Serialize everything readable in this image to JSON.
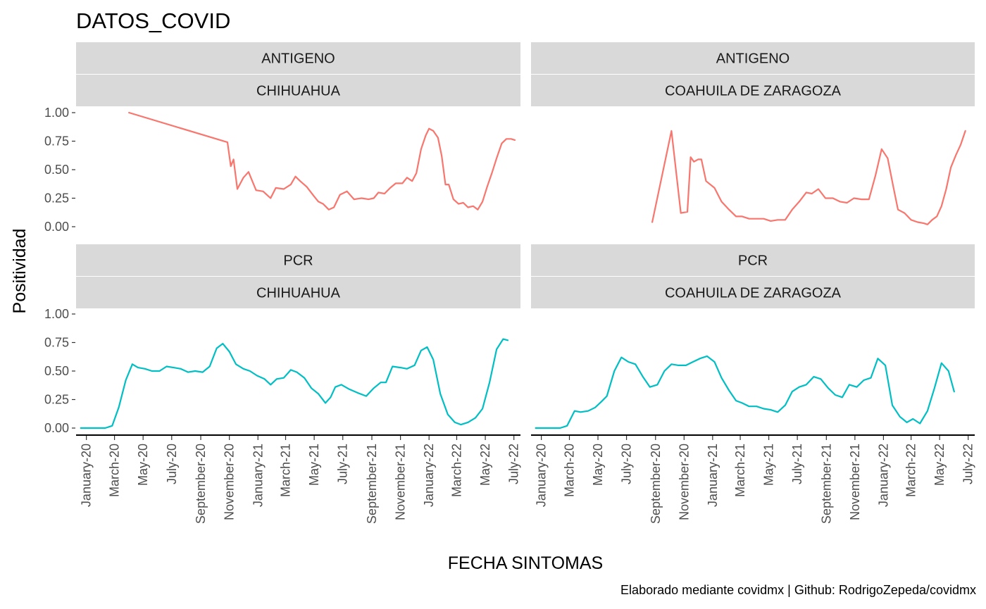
{
  "chart_data": {
    "type": "line",
    "title": "DATOS_COVID",
    "xlabel": "FECHA SINTOMAS",
    "ylabel": "Positividad",
    "caption": "Elaborado mediante covidmx | Github: RodrigoZepeda/covidmx",
    "ylim": [
      0,
      1
    ],
    "y_ticks": [
      0,
      0.25,
      0.5,
      0.75,
      1.0
    ],
    "y_tick_labels": [
      "0.00",
      "0.25",
      "0.50",
      "0.75",
      "1.00"
    ],
    "xlim": [
      "2019-12-10",
      "2022-07-15"
    ],
    "x_ticks": [
      "2020-01-01",
      "2020-03-01",
      "2020-05-01",
      "2020-07-01",
      "2020-09-01",
      "2020-11-01",
      "2021-01-01",
      "2021-03-01",
      "2021-05-01",
      "2021-07-01",
      "2021-09-01",
      "2021-11-01",
      "2022-01-01",
      "2022-03-01",
      "2022-05-01",
      "2022-07-01"
    ],
    "x_tick_labels": [
      "January-20",
      "March-20",
      "May-20",
      "July-20",
      "September-20",
      "November-20",
      "January-21",
      "March-21",
      "May-21",
      "July-21",
      "September-21",
      "November-21",
      "January-22",
      "March-22",
      "May-22",
      "July-22"
    ],
    "grid": false,
    "colors": {
      "ANTIGENO": "#F8766D",
      "PCR": "#00BFC4"
    },
    "panels": [
      {
        "strip_top": "ANTIGENO",
        "strip_bottom": "CHIHUAHUA",
        "series": [
          {
            "x": "2020-04-01",
            "y": 1.0
          },
          {
            "x": "2020-10-28",
            "y": 0.74
          },
          {
            "x": "2020-11-04",
            "y": 0.53
          },
          {
            "x": "2020-11-10",
            "y": 0.59
          },
          {
            "x": "2020-11-18",
            "y": 0.33
          },
          {
            "x": "2020-12-01",
            "y": 0.43
          },
          {
            "x": "2020-12-12",
            "y": 0.48
          },
          {
            "x": "2020-12-28",
            "y": 0.32
          },
          {
            "x": "2021-01-12",
            "y": 0.31
          },
          {
            "x": "2021-01-28",
            "y": 0.25
          },
          {
            "x": "2021-02-08",
            "y": 0.34
          },
          {
            "x": "2021-02-25",
            "y": 0.33
          },
          {
            "x": "2021-03-12",
            "y": 0.37
          },
          {
            "x": "2021-03-22",
            "y": 0.44
          },
          {
            "x": "2021-04-01",
            "y": 0.4
          },
          {
            "x": "2021-04-15",
            "y": 0.35
          },
          {
            "x": "2021-04-30",
            "y": 0.27
          },
          {
            "x": "2021-05-10",
            "y": 0.22
          },
          {
            "x": "2021-05-20",
            "y": 0.2
          },
          {
            "x": "2021-06-01",
            "y": 0.15
          },
          {
            "x": "2021-06-12",
            "y": 0.17
          },
          {
            "x": "2021-06-25",
            "y": 0.28
          },
          {
            "x": "2021-07-10",
            "y": 0.31
          },
          {
            "x": "2021-07-25",
            "y": 0.24
          },
          {
            "x": "2021-08-10",
            "y": 0.25
          },
          {
            "x": "2021-08-25",
            "y": 0.24
          },
          {
            "x": "2021-09-05",
            "y": 0.25
          },
          {
            "x": "2021-09-15",
            "y": 0.3
          },
          {
            "x": "2021-09-28",
            "y": 0.29
          },
          {
            "x": "2021-10-10",
            "y": 0.34
          },
          {
            "x": "2021-10-22",
            "y": 0.38
          },
          {
            "x": "2021-11-05",
            "y": 0.38
          },
          {
            "x": "2021-11-15",
            "y": 0.43
          },
          {
            "x": "2021-11-26",
            "y": 0.4
          },
          {
            "x": "2021-12-05",
            "y": 0.47
          },
          {
            "x": "2021-12-15",
            "y": 0.68
          },
          {
            "x": "2021-12-25",
            "y": 0.8
          },
          {
            "x": "2022-01-01",
            "y": 0.86
          },
          {
            "x": "2022-01-10",
            "y": 0.84
          },
          {
            "x": "2022-01-20",
            "y": 0.78
          },
          {
            "x": "2022-01-28",
            "y": 0.62
          },
          {
            "x": "2022-02-05",
            "y": 0.37
          },
          {
            "x": "2022-02-12",
            "y": 0.37
          },
          {
            "x": "2022-02-22",
            "y": 0.24
          },
          {
            "x": "2022-03-05",
            "y": 0.2
          },
          {
            "x": "2022-03-15",
            "y": 0.21
          },
          {
            "x": "2022-03-25",
            "y": 0.17
          },
          {
            "x": "2022-04-05",
            "y": 0.18
          },
          {
            "x": "2022-04-15",
            "y": 0.15
          },
          {
            "x": "2022-04-25",
            "y": 0.22
          },
          {
            "x": "2022-05-05",
            "y": 0.35
          },
          {
            "x": "2022-05-15",
            "y": 0.47
          },
          {
            "x": "2022-05-25",
            "y": 0.6
          },
          {
            "x": "2022-06-05",
            "y": 0.73
          },
          {
            "x": "2022-06-15",
            "y": 0.77
          },
          {
            "x": "2022-06-25",
            "y": 0.77
          },
          {
            "x": "2022-07-03",
            "y": 0.76
          }
        ]
      },
      {
        "strip_top": "ANTIGENO",
        "strip_bottom": "COAHUILA DE ZARAGOZA",
        "series": [
          {
            "x": "2020-08-25",
            "y": 0.04
          },
          {
            "x": "2020-10-05",
            "y": 0.84
          },
          {
            "x": "2020-10-25",
            "y": 0.12
          },
          {
            "x": "2020-11-08",
            "y": 0.13
          },
          {
            "x": "2020-11-15",
            "y": 0.61
          },
          {
            "x": "2020-11-22",
            "y": 0.57
          },
          {
            "x": "2020-12-01",
            "y": 0.59
          },
          {
            "x": "2020-12-08",
            "y": 0.59
          },
          {
            "x": "2020-12-18",
            "y": 0.4
          },
          {
            "x": "2021-01-05",
            "y": 0.34
          },
          {
            "x": "2021-01-20",
            "y": 0.22
          },
          {
            "x": "2021-02-05",
            "y": 0.15
          },
          {
            "x": "2021-02-20",
            "y": 0.09
          },
          {
            "x": "2021-03-05",
            "y": 0.09
          },
          {
            "x": "2021-03-20",
            "y": 0.07
          },
          {
            "x": "2021-04-05",
            "y": 0.07
          },
          {
            "x": "2021-04-20",
            "y": 0.07
          },
          {
            "x": "2021-05-05",
            "y": 0.05
          },
          {
            "x": "2021-05-20",
            "y": 0.06
          },
          {
            "x": "2021-06-05",
            "y": 0.06
          },
          {
            "x": "2021-06-20",
            "y": 0.15
          },
          {
            "x": "2021-07-05",
            "y": 0.22
          },
          {
            "x": "2021-07-20",
            "y": 0.3
          },
          {
            "x": "2021-08-01",
            "y": 0.29
          },
          {
            "x": "2021-08-15",
            "y": 0.33
          },
          {
            "x": "2021-08-30",
            "y": 0.25
          },
          {
            "x": "2021-09-15",
            "y": 0.25
          },
          {
            "x": "2021-09-30",
            "y": 0.22
          },
          {
            "x": "2021-10-15",
            "y": 0.21
          },
          {
            "x": "2021-10-30",
            "y": 0.25
          },
          {
            "x": "2021-11-15",
            "y": 0.24
          },
          {
            "x": "2021-12-01",
            "y": 0.24
          },
          {
            "x": "2021-12-15",
            "y": 0.45
          },
          {
            "x": "2021-12-28",
            "y": 0.68
          },
          {
            "x": "2022-01-10",
            "y": 0.6
          },
          {
            "x": "2022-01-22",
            "y": 0.35
          },
          {
            "x": "2022-02-01",
            "y": 0.15
          },
          {
            "x": "2022-02-15",
            "y": 0.12
          },
          {
            "x": "2022-03-01",
            "y": 0.06
          },
          {
            "x": "2022-03-15",
            "y": 0.04
          },
          {
            "x": "2022-03-28",
            "y": 0.03
          },
          {
            "x": "2022-04-05",
            "y": 0.02
          },
          {
            "x": "2022-04-15",
            "y": 0.06
          },
          {
            "x": "2022-04-25",
            "y": 0.09
          },
          {
            "x": "2022-05-05",
            "y": 0.18
          },
          {
            "x": "2022-05-15",
            "y": 0.33
          },
          {
            "x": "2022-05-25",
            "y": 0.52
          },
          {
            "x": "2022-06-05",
            "y": 0.63
          },
          {
            "x": "2022-06-15",
            "y": 0.72
          },
          {
            "x": "2022-06-25",
            "y": 0.84
          }
        ]
      },
      {
        "strip_top": "PCR",
        "strip_bottom": "CHIHUAHUA",
        "series": [
          {
            "x": "2019-12-20",
            "y": 0.0
          },
          {
            "x": "2020-01-15",
            "y": 0.0
          },
          {
            "x": "2020-02-10",
            "y": 0.0
          },
          {
            "x": "2020-02-25",
            "y": 0.02
          },
          {
            "x": "2020-03-10",
            "y": 0.18
          },
          {
            "x": "2020-03-25",
            "y": 0.42
          },
          {
            "x": "2020-04-08",
            "y": 0.56
          },
          {
            "x": "2020-04-20",
            "y": 0.53
          },
          {
            "x": "2020-05-05",
            "y": 0.52
          },
          {
            "x": "2020-05-20",
            "y": 0.5
          },
          {
            "x": "2020-06-05",
            "y": 0.5
          },
          {
            "x": "2020-06-20",
            "y": 0.54
          },
          {
            "x": "2020-07-05",
            "y": 0.53
          },
          {
            "x": "2020-07-20",
            "y": 0.52
          },
          {
            "x": "2020-08-05",
            "y": 0.49
          },
          {
            "x": "2020-08-20",
            "y": 0.5
          },
          {
            "x": "2020-09-05",
            "y": 0.49
          },
          {
            "x": "2020-09-20",
            "y": 0.54
          },
          {
            "x": "2020-10-05",
            "y": 0.7
          },
          {
            "x": "2020-10-18",
            "y": 0.74
          },
          {
            "x": "2020-11-01",
            "y": 0.67
          },
          {
            "x": "2020-11-15",
            "y": 0.56
          },
          {
            "x": "2020-12-01",
            "y": 0.52
          },
          {
            "x": "2020-12-15",
            "y": 0.5
          },
          {
            "x": "2020-12-30",
            "y": 0.46
          },
          {
            "x": "2021-01-15",
            "y": 0.43
          },
          {
            "x": "2021-01-28",
            "y": 0.38
          },
          {
            "x": "2021-02-10",
            "y": 0.43
          },
          {
            "x": "2021-02-25",
            "y": 0.44
          },
          {
            "x": "2021-03-12",
            "y": 0.51
          },
          {
            "x": "2021-03-25",
            "y": 0.49
          },
          {
            "x": "2021-04-10",
            "y": 0.44
          },
          {
            "x": "2021-04-25",
            "y": 0.35
          },
          {
            "x": "2021-05-10",
            "y": 0.3
          },
          {
            "x": "2021-05-25",
            "y": 0.22
          },
          {
            "x": "2021-06-05",
            "y": 0.27
          },
          {
            "x": "2021-06-15",
            "y": 0.36
          },
          {
            "x": "2021-06-28",
            "y": 0.38
          },
          {
            "x": "2021-07-15",
            "y": 0.34
          },
          {
            "x": "2021-08-01",
            "y": 0.31
          },
          {
            "x": "2021-08-20",
            "y": 0.28
          },
          {
            "x": "2021-09-05",
            "y": 0.35
          },
          {
            "x": "2021-09-20",
            "y": 0.4
          },
          {
            "x": "2021-10-01",
            "y": 0.4
          },
          {
            "x": "2021-10-15",
            "y": 0.54
          },
          {
            "x": "2021-11-01",
            "y": 0.53
          },
          {
            "x": "2021-11-15",
            "y": 0.52
          },
          {
            "x": "2021-12-01",
            "y": 0.55
          },
          {
            "x": "2021-12-15",
            "y": 0.68
          },
          {
            "x": "2021-12-28",
            "y": 0.71
          },
          {
            "x": "2022-01-10",
            "y": 0.6
          },
          {
            "x": "2022-01-25",
            "y": 0.3
          },
          {
            "x": "2022-02-10",
            "y": 0.12
          },
          {
            "x": "2022-02-25",
            "y": 0.05
          },
          {
            "x": "2022-03-10",
            "y": 0.03
          },
          {
            "x": "2022-03-25",
            "y": 0.05
          },
          {
            "x": "2022-04-10",
            "y": 0.09
          },
          {
            "x": "2022-04-25",
            "y": 0.17
          },
          {
            "x": "2022-05-10",
            "y": 0.4
          },
          {
            "x": "2022-05-25",
            "y": 0.69
          },
          {
            "x": "2022-06-08",
            "y": 0.78
          },
          {
            "x": "2022-06-18",
            "y": 0.77
          }
        ]
      },
      {
        "strip_top": "PCR",
        "strip_bottom": "COAHUILA DE ZARAGOZA",
        "series": [
          {
            "x": "2019-12-20",
            "y": 0.0
          },
          {
            "x": "2020-01-20",
            "y": 0.0
          },
          {
            "x": "2020-02-10",
            "y": 0.0
          },
          {
            "x": "2020-02-25",
            "y": 0.02
          },
          {
            "x": "2020-03-12",
            "y": 0.15
          },
          {
            "x": "2020-03-25",
            "y": 0.14
          },
          {
            "x": "2020-04-10",
            "y": 0.15
          },
          {
            "x": "2020-04-25",
            "y": 0.18
          },
          {
            "x": "2020-05-08",
            "y": 0.23
          },
          {
            "x": "2020-05-20",
            "y": 0.28
          },
          {
            "x": "2020-06-05",
            "y": 0.5
          },
          {
            "x": "2020-06-20",
            "y": 0.62
          },
          {
            "x": "2020-07-05",
            "y": 0.58
          },
          {
            "x": "2020-07-20",
            "y": 0.56
          },
          {
            "x": "2020-08-05",
            "y": 0.45
          },
          {
            "x": "2020-08-20",
            "y": 0.36
          },
          {
            "x": "2020-09-05",
            "y": 0.38
          },
          {
            "x": "2020-09-20",
            "y": 0.5
          },
          {
            "x": "2020-10-05",
            "y": 0.56
          },
          {
            "x": "2020-10-20",
            "y": 0.55
          },
          {
            "x": "2020-11-05",
            "y": 0.55
          },
          {
            "x": "2020-11-20",
            "y": 0.58
          },
          {
            "x": "2020-12-05",
            "y": 0.61
          },
          {
            "x": "2020-12-20",
            "y": 0.63
          },
          {
            "x": "2021-01-05",
            "y": 0.58
          },
          {
            "x": "2021-01-20",
            "y": 0.44
          },
          {
            "x": "2021-02-05",
            "y": 0.33
          },
          {
            "x": "2021-02-20",
            "y": 0.24
          },
          {
            "x": "2021-03-05",
            "y": 0.22
          },
          {
            "x": "2021-03-20",
            "y": 0.19
          },
          {
            "x": "2021-04-05",
            "y": 0.19
          },
          {
            "x": "2021-04-20",
            "y": 0.17
          },
          {
            "x": "2021-05-05",
            "y": 0.16
          },
          {
            "x": "2021-05-20",
            "y": 0.14
          },
          {
            "x": "2021-06-05",
            "y": 0.2
          },
          {
            "x": "2021-06-20",
            "y": 0.32
          },
          {
            "x": "2021-07-05",
            "y": 0.36
          },
          {
            "x": "2021-07-20",
            "y": 0.38
          },
          {
            "x": "2021-08-05",
            "y": 0.45
          },
          {
            "x": "2021-08-20",
            "y": 0.43
          },
          {
            "x": "2021-09-05",
            "y": 0.35
          },
          {
            "x": "2021-09-20",
            "y": 0.29
          },
          {
            "x": "2021-10-05",
            "y": 0.27
          },
          {
            "x": "2021-10-20",
            "y": 0.38
          },
          {
            "x": "2021-11-05",
            "y": 0.36
          },
          {
            "x": "2021-11-20",
            "y": 0.42
          },
          {
            "x": "2021-12-05",
            "y": 0.44
          },
          {
            "x": "2021-12-20",
            "y": 0.61
          },
          {
            "x": "2022-01-05",
            "y": 0.55
          },
          {
            "x": "2022-01-20",
            "y": 0.2
          },
          {
            "x": "2022-02-05",
            "y": 0.1
          },
          {
            "x": "2022-02-20",
            "y": 0.05
          },
          {
            "x": "2022-03-05",
            "y": 0.08
          },
          {
            "x": "2022-03-20",
            "y": 0.04
          },
          {
            "x": "2022-04-05",
            "y": 0.15
          },
          {
            "x": "2022-04-20",
            "y": 0.35
          },
          {
            "x": "2022-05-05",
            "y": 0.57
          },
          {
            "x": "2022-05-20",
            "y": 0.5
          },
          {
            "x": "2022-06-01",
            "y": 0.32
          }
        ]
      }
    ]
  }
}
